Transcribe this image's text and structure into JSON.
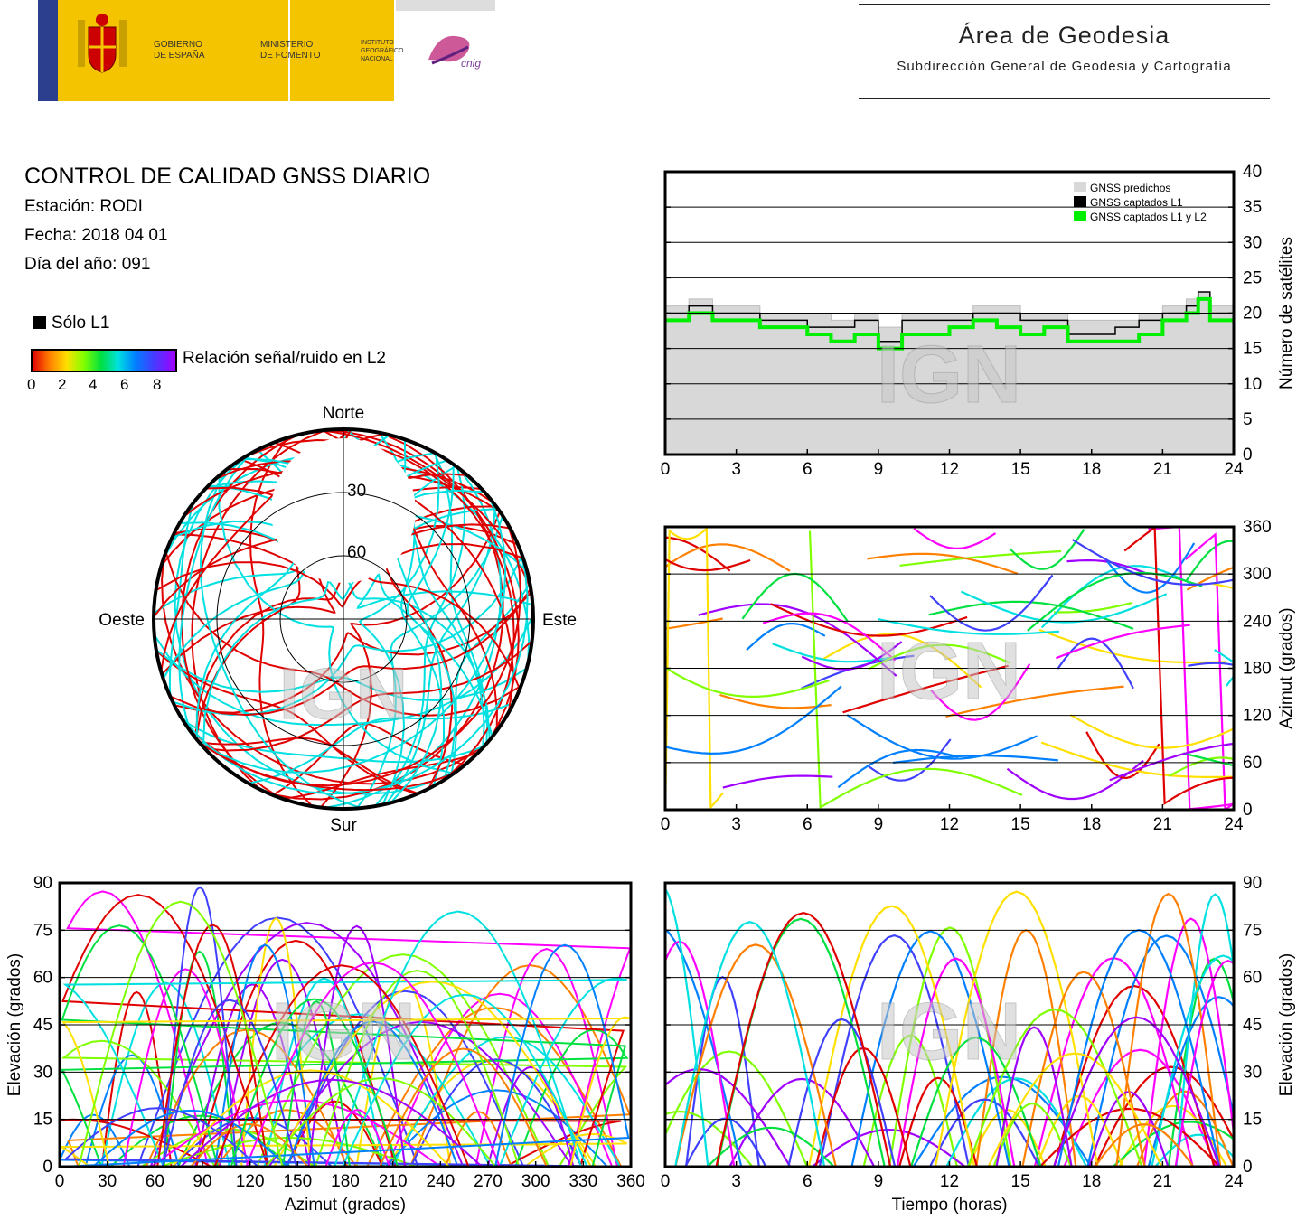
{
  "header": {
    "gov_line1": "GOBIERNO",
    "gov_line2": "DE ESPAÑA",
    "min_line1": "MINISTERIO",
    "min_line2": "DE FOMENTO",
    "inst_line1": "INSTITUTO",
    "inst_line2": "GEOGRÁFICO",
    "inst_line3": "NACIONAL",
    "cnig": "cnig",
    "area_title": "Área de Geodesia",
    "area_subtitle": "Subdirección General de Geodesia y Cartografía"
  },
  "info": {
    "title": "CONTROL DE CALIDAD GNSS DIARIO",
    "station": "Estación: RODI",
    "date": "Fecha: 2018 04 01",
    "doy": "Día del año: 091",
    "legend_l1": "Sólo L1",
    "snr_label": "Relación señal/ruido en L2",
    "snr_ticks": [
      "0",
      "2",
      "4",
      "6",
      "8"
    ]
  },
  "colors": {
    "predicted": "#d8d8d8",
    "captured_l1": "#000000",
    "captured_l1_l2": "#00ee00",
    "snr_scale": [
      "#e00000",
      "#ff8000",
      "#ffe000",
      "#80ff00",
      "#00e040",
      "#00e0e0",
      "#0080ff",
      "#4040ff",
      "#a000ff",
      "#ff00ff"
    ]
  },
  "watermark": "IGN",
  "chart_data": [
    {
      "id": "satellites",
      "type": "area",
      "ylabel": "Número de satélites",
      "xlim": [
        0,
        24
      ],
      "ylim": [
        0,
        40
      ],
      "xticks": [
        "0",
        "3",
        "6",
        "9",
        "12",
        "15",
        "18",
        "21",
        "24"
      ],
      "yticks": [
        "0",
        "5",
        "10",
        "15",
        "20",
        "25",
        "30",
        "35",
        "40"
      ],
      "grid": true,
      "legend_position": "top-right",
      "legend": [
        "GNSS predichos",
        "GNSS captados L1",
        "GNSS captados L1 y L2"
      ],
      "x": [
        0,
        1,
        2,
        3,
        4,
        5,
        6,
        7,
        8,
        9,
        10,
        11,
        12,
        13,
        14,
        15,
        16,
        17,
        18,
        19,
        20,
        21,
        22,
        22.5,
        23,
        24
      ],
      "series": [
        {
          "name": "GNSS predichos",
          "values": [
            21,
            22,
            21,
            21,
            20,
            20,
            20,
            19,
            20,
            18,
            20,
            20,
            20,
            21,
            21,
            20,
            20,
            19,
            19,
            19,
            20,
            21,
            22,
            23,
            21,
            20
          ]
        },
        {
          "name": "GNSS captados L1",
          "values": [
            20,
            21,
            20,
            20,
            19,
            19,
            18,
            18,
            19,
            16,
            19,
            19,
            19,
            20,
            20,
            19,
            19,
            17,
            17,
            18,
            19,
            20,
            21,
            23,
            20,
            20
          ]
        },
        {
          "name": "GNSS captados L1 y L2",
          "values": [
            19,
            20,
            19,
            19,
            18,
            18,
            17,
            16,
            17,
            15,
            17,
            17,
            18,
            19,
            18,
            17,
            18,
            16,
            16,
            16,
            17,
            19,
            20,
            22,
            19,
            19
          ]
        }
      ]
    },
    {
      "id": "skyplot",
      "type": "scatter",
      "labels": {
        "north": "Norte",
        "south": "Sur",
        "east": "Este",
        "west": "Oeste"
      },
      "rings": [
        "30",
        "60"
      ]
    },
    {
      "id": "azimuth_time",
      "type": "scatter",
      "ylabel": "Azimut (grados)",
      "xlim": [
        0,
        24
      ],
      "ylim": [
        0,
        360
      ],
      "xticks": [
        "0",
        "3",
        "6",
        "9",
        "12",
        "15",
        "18",
        "21",
        "24"
      ],
      "yticks": [
        "0",
        "60",
        "120",
        "180",
        "240",
        "300",
        "360"
      ],
      "grid": true
    },
    {
      "id": "elevation_azimuth",
      "type": "scatter",
      "xlabel": "Azimut (grados)",
      "ylabel": "Elevación (grados)",
      "xlim": [
        0,
        360
      ],
      "ylim": [
        0,
        90
      ],
      "xticks": [
        "0",
        "30",
        "60",
        "90",
        "120",
        "150",
        "180",
        "210",
        "240",
        "270",
        "300",
        "330",
        "360"
      ],
      "yticks": [
        "0",
        "15",
        "30",
        "45",
        "60",
        "75",
        "90"
      ],
      "grid": true
    },
    {
      "id": "elevation_time",
      "type": "line",
      "xlabel": "Tiempo (horas)",
      "ylabel": "Elevación (grados)",
      "xlim": [
        0,
        24
      ],
      "ylim": [
        0,
        90
      ],
      "xticks": [
        "0",
        "3",
        "6",
        "9",
        "12",
        "15",
        "18",
        "21",
        "24"
      ],
      "yticks": [
        "0",
        "15",
        "30",
        "45",
        "60",
        "75",
        "90"
      ],
      "grid": true
    }
  ]
}
